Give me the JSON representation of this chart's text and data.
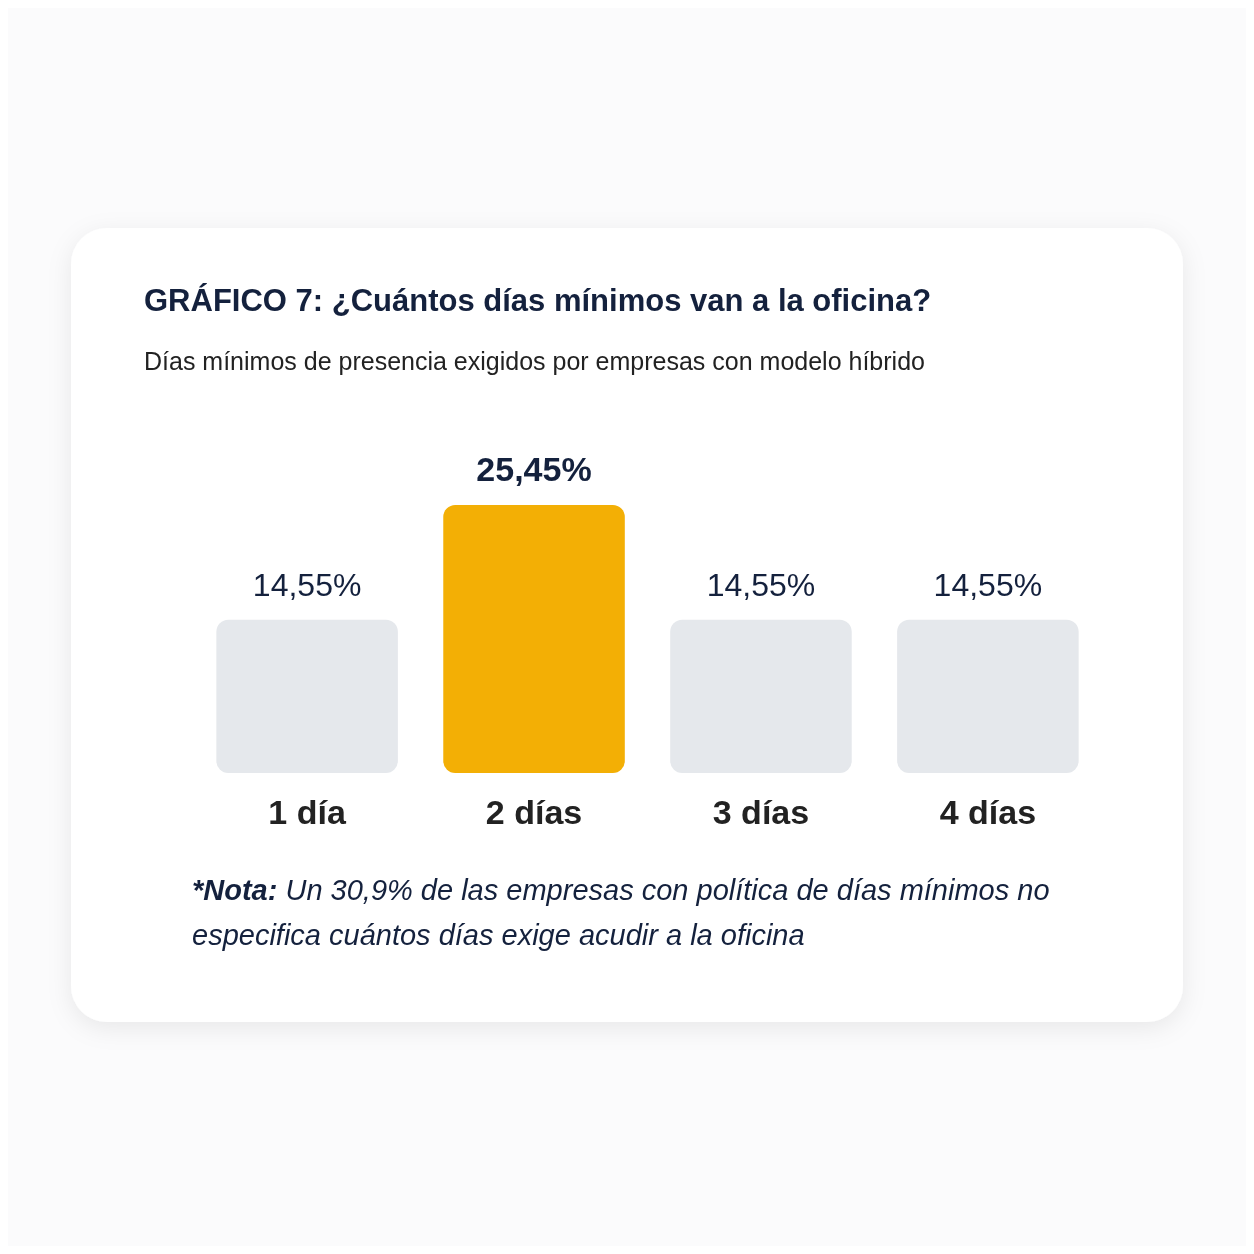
{
  "chart_data": {
    "type": "bar",
    "title": "GRÁFICO 7: ¿Cuántos días mínimos van a la oficina?",
    "subtitle": "Días mínimos de presencia exigidos por empresas con modelo híbrido",
    "categories": [
      "1 día",
      "2 días",
      "3 días",
      "4 días"
    ],
    "values": [
      14.55,
      25.45,
      14.55,
      14.55
    ],
    "colors": [
      "#e5e8ec",
      "#f3af05",
      "#e5e8ec",
      "#e5e8ec"
    ],
    "value_labels": [
      "14,55%",
      "25,45%",
      "14,55%",
      "14,55%"
    ],
    "annotations": [
      "*Nota: Un 30,9% de las empresas con política de días mínimos no especifica cuántos días exige acudir a la oficina"
    ]
  }
}
